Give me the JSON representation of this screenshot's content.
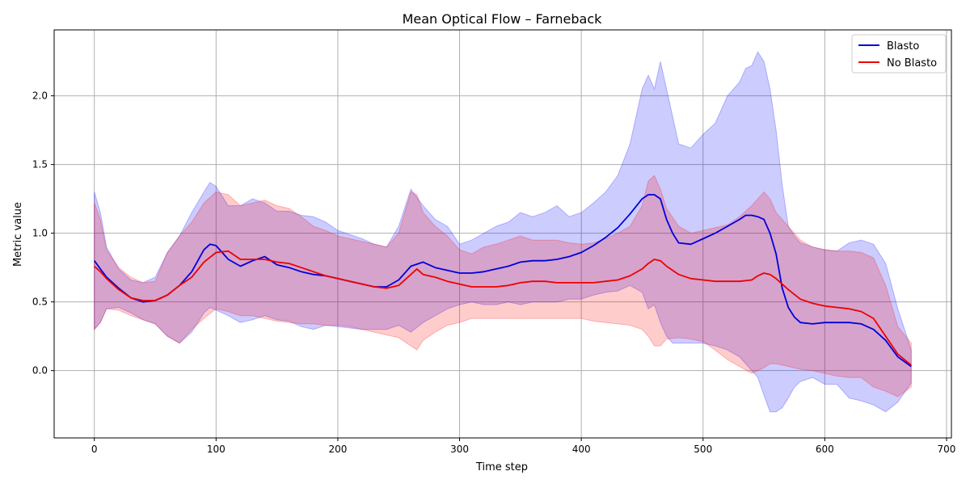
{
  "chart_data": {
    "type": "line",
    "title": "Mean Optical Flow – Farneback",
    "xlabel": "Time step",
    "ylabel": "Metric value",
    "xlim": [
      -33,
      704
    ],
    "ylim": [
      -0.49,
      2.48
    ],
    "x_ticks": [
      0,
      100,
      200,
      300,
      400,
      500,
      600,
      700
    ],
    "y_ticks": [
      0.0,
      0.5,
      1.0,
      1.5,
      2.0
    ],
    "x_tick_labels": [
      "0",
      "100",
      "200",
      "300",
      "400",
      "500",
      "600",
      "700"
    ],
    "y_tick_labels": [
      "0.0",
      "0.5",
      "1.0",
      "1.5",
      "2.0"
    ],
    "grid": true,
    "legend_position": "top-right",
    "series": [
      {
        "name": "Blasto",
        "color": "#0000dd",
        "band_color": "#0000ff",
        "x": [
          0,
          5,
          10,
          20,
          30,
          40,
          50,
          60,
          70,
          80,
          90,
          95,
          100,
          110,
          120,
          130,
          140,
          150,
          160,
          170,
          180,
          190,
          200,
          210,
          220,
          230,
          240,
          250,
          260,
          270,
          280,
          290,
          300,
          310,
          320,
          330,
          340,
          350,
          360,
          370,
          380,
          390,
          400,
          410,
          420,
          430,
          440,
          450,
          455,
          460,
          465,
          470,
          475,
          480,
          490,
          500,
          510,
          520,
          530,
          535,
          540,
          545,
          550,
          555,
          560,
          565,
          570,
          575,
          580,
          590,
          600,
          610,
          620,
          630,
          640,
          650,
          660,
          671
        ],
        "y": [
          0.8,
          0.74,
          0.68,
          0.6,
          0.53,
          0.5,
          0.51,
          0.55,
          0.62,
          0.72,
          0.88,
          0.92,
          0.91,
          0.81,
          0.76,
          0.8,
          0.83,
          0.77,
          0.75,
          0.72,
          0.7,
          0.69,
          0.67,
          0.65,
          0.63,
          0.61,
          0.61,
          0.66,
          0.76,
          0.79,
          0.75,
          0.73,
          0.71,
          0.71,
          0.72,
          0.74,
          0.76,
          0.79,
          0.8,
          0.8,
          0.81,
          0.83,
          0.86,
          0.91,
          0.97,
          1.04,
          1.14,
          1.25,
          1.28,
          1.28,
          1.25,
          1.1,
          1.0,
          0.93,
          0.92,
          0.96,
          1.0,
          1.05,
          1.1,
          1.13,
          1.13,
          1.12,
          1.1,
          1.0,
          0.85,
          0.6,
          0.46,
          0.39,
          0.35,
          0.34,
          0.35,
          0.35,
          0.35,
          0.34,
          0.3,
          0.22,
          0.1,
          0.03
        ],
        "upper": [
          1.3,
          1.15,
          0.9,
          0.74,
          0.66,
          0.64,
          0.68,
          0.86,
          0.98,
          1.15,
          1.3,
          1.37,
          1.34,
          1.2,
          1.2,
          1.25,
          1.22,
          1.16,
          1.16,
          1.13,
          1.12,
          1.08,
          1.02,
          0.99,
          0.96,
          0.92,
          0.9,
          1.05,
          1.32,
          1.2,
          1.1,
          1.05,
          0.92,
          0.95,
          1.0,
          1.05,
          1.08,
          1.15,
          1.12,
          1.15,
          1.2,
          1.12,
          1.15,
          1.22,
          1.3,
          1.42,
          1.65,
          2.05,
          2.15,
          2.05,
          2.25,
          2.05,
          1.85,
          1.65,
          1.62,
          1.72,
          1.8,
          2.0,
          2.1,
          2.2,
          2.22,
          2.32,
          2.25,
          2.05,
          1.75,
          1.35,
          1.05,
          0.98,
          0.93,
          0.9,
          0.88,
          0.87,
          0.93,
          0.95,
          0.92,
          0.78,
          0.45,
          0.15
        ],
        "lower": [
          0.3,
          0.35,
          0.45,
          0.46,
          0.42,
          0.37,
          0.34,
          0.25,
          0.2,
          0.28,
          0.42,
          0.46,
          0.44,
          0.4,
          0.35,
          0.37,
          0.4,
          0.37,
          0.36,
          0.32,
          0.3,
          0.33,
          0.32,
          0.31,
          0.3,
          0.3,
          0.3,
          0.33,
          0.28,
          0.35,
          0.4,
          0.45,
          0.48,
          0.5,
          0.48,
          0.48,
          0.5,
          0.48,
          0.5,
          0.5,
          0.5,
          0.52,
          0.52,
          0.55,
          0.57,
          0.58,
          0.62,
          0.57,
          0.45,
          0.48,
          0.35,
          0.25,
          0.2,
          0.2,
          0.2,
          0.2,
          0.18,
          0.15,
          0.1,
          0.05,
          0.0,
          -0.05,
          -0.18,
          -0.3,
          -0.3,
          -0.27,
          -0.2,
          -0.12,
          -0.08,
          -0.05,
          -0.1,
          -0.1,
          -0.2,
          -0.22,
          -0.25,
          -0.3,
          -0.23,
          -0.09
        ]
      },
      {
        "name": "No Blasto",
        "color": "#ee0000",
        "band_color": "#ff0000",
        "x": [
          0,
          5,
          10,
          20,
          30,
          40,
          50,
          60,
          70,
          80,
          90,
          100,
          110,
          120,
          130,
          140,
          150,
          160,
          170,
          180,
          190,
          200,
          210,
          220,
          230,
          240,
          250,
          260,
          265,
          270,
          280,
          290,
          300,
          310,
          320,
          330,
          340,
          350,
          360,
          370,
          380,
          390,
          400,
          410,
          420,
          430,
          440,
          450,
          455,
          460,
          465,
          470,
          480,
          490,
          500,
          510,
          520,
          530,
          540,
          545,
          550,
          555,
          560,
          570,
          580,
          590,
          600,
          610,
          620,
          630,
          640,
          650,
          660,
          671
        ],
        "y": [
          0.76,
          0.72,
          0.67,
          0.59,
          0.53,
          0.51,
          0.51,
          0.55,
          0.62,
          0.68,
          0.79,
          0.86,
          0.87,
          0.81,
          0.81,
          0.81,
          0.79,
          0.78,
          0.75,
          0.72,
          0.69,
          0.67,
          0.65,
          0.63,
          0.61,
          0.6,
          0.62,
          0.7,
          0.74,
          0.7,
          0.68,
          0.65,
          0.63,
          0.61,
          0.61,
          0.61,
          0.62,
          0.64,
          0.65,
          0.65,
          0.64,
          0.64,
          0.64,
          0.64,
          0.65,
          0.66,
          0.69,
          0.74,
          0.78,
          0.81,
          0.8,
          0.76,
          0.7,
          0.67,
          0.66,
          0.65,
          0.65,
          0.65,
          0.66,
          0.69,
          0.71,
          0.7,
          0.67,
          0.59,
          0.52,
          0.49,
          0.47,
          0.46,
          0.45,
          0.43,
          0.38,
          0.25,
          0.12,
          0.04
        ],
        "upper": [
          1.22,
          1.1,
          0.88,
          0.75,
          0.68,
          0.64,
          0.65,
          0.86,
          0.98,
          1.08,
          1.22,
          1.3,
          1.28,
          1.2,
          1.22,
          1.24,
          1.2,
          1.18,
          1.12,
          1.05,
          1.02,
          0.98,
          0.96,
          0.94,
          0.92,
          0.9,
          1.0,
          1.3,
          1.28,
          1.15,
          1.05,
          0.98,
          0.88,
          0.85,
          0.9,
          0.92,
          0.95,
          0.98,
          0.95,
          0.95,
          0.95,
          0.93,
          0.92,
          0.93,
          0.96,
          1.0,
          1.05,
          1.2,
          1.38,
          1.42,
          1.32,
          1.18,
          1.05,
          1.0,
          1.02,
          1.04,
          1.06,
          1.12,
          1.2,
          1.25,
          1.3,
          1.25,
          1.15,
          1.05,
          0.95,
          0.9,
          0.88,
          0.87,
          0.87,
          0.86,
          0.82,
          0.62,
          0.32,
          0.2
        ],
        "lower": [
          0.3,
          0.35,
          0.45,
          0.44,
          0.4,
          0.37,
          0.34,
          0.25,
          0.2,
          0.3,
          0.38,
          0.45,
          0.43,
          0.4,
          0.4,
          0.38,
          0.36,
          0.35,
          0.34,
          0.34,
          0.33,
          0.33,
          0.32,
          0.3,
          0.28,
          0.26,
          0.24,
          0.18,
          0.15,
          0.22,
          0.28,
          0.33,
          0.35,
          0.38,
          0.38,
          0.38,
          0.38,
          0.38,
          0.38,
          0.38,
          0.38,
          0.38,
          0.38,
          0.36,
          0.35,
          0.34,
          0.33,
          0.3,
          0.25,
          0.18,
          0.18,
          0.23,
          0.24,
          0.23,
          0.21,
          0.15,
          0.08,
          0.03,
          -0.02,
          0.0,
          0.02,
          0.05,
          0.05,
          0.03,
          0.01,
          0.0,
          -0.02,
          -0.04,
          -0.05,
          -0.05,
          -0.12,
          -0.15,
          -0.19,
          -0.12
        ]
      }
    ]
  }
}
